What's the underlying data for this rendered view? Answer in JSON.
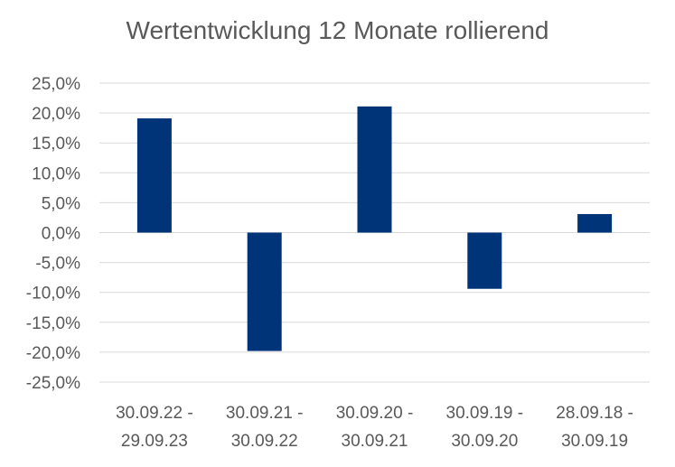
{
  "chart_data": {
    "type": "bar",
    "title": "Wertentwicklung 12 Monate rollierend",
    "xlabel": "",
    "ylabel": "",
    "categories": [
      [
        "30.09.22 -",
        "29.09.23"
      ],
      [
        "30.09.21 -",
        "30.09.22"
      ],
      [
        "30.09.20 -",
        "30.09.21"
      ],
      [
        "30.09.19 -",
        "30.09.20"
      ],
      [
        "28.09.18 -",
        "30.09.19"
      ]
    ],
    "values": [
      19.1,
      -19.8,
      21.1,
      -9.4,
      3.1
    ],
    "ylim": [
      -25,
      25
    ],
    "ytick_step": 5,
    "ytick_labels": [
      "25,0%",
      "20,0%",
      "15,0%",
      "10,0%",
      "5,0%",
      "0,0%",
      "-5,0%",
      "-10,0%",
      "-15,0%",
      "-20,0%",
      "-25,0%"
    ],
    "grid": true,
    "legend": "none",
    "bar_color": "#003478",
    "grid_color": "#d9d9d9",
    "text_color": "#595959"
  }
}
